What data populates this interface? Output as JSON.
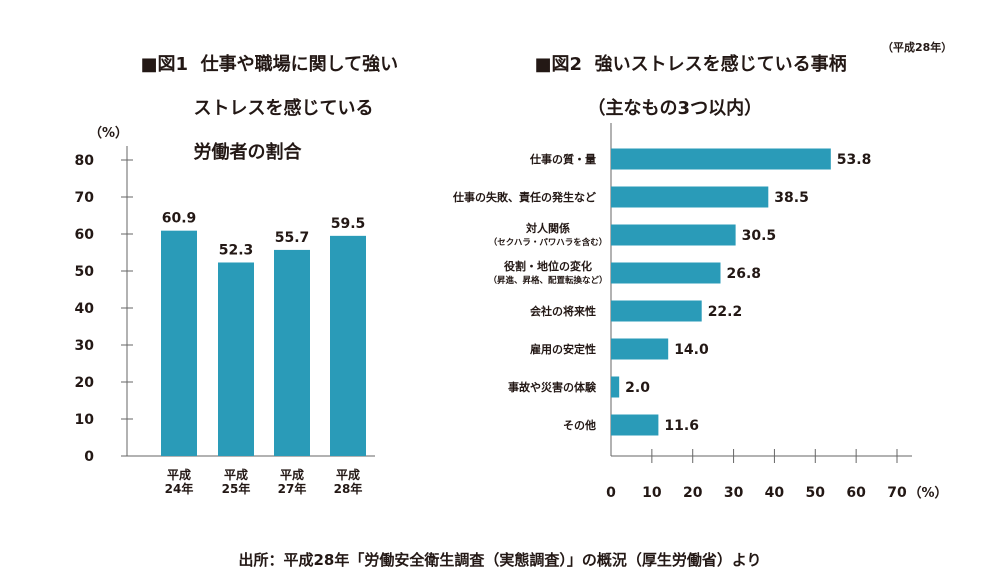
{
  "figure1": {
    "label": "■図1",
    "title_lines": [
      "仕事や職場に関して強い",
      "ストレスを感じている",
      "労働者の割合"
    ],
    "unit_label": "（%）",
    "chart_data": {
      "type": "bar",
      "categories": [
        [
          "平成",
          "24年"
        ],
        [
          "平成",
          "25年"
        ],
        [
          "平成",
          "27年"
        ],
        [
          "平成",
          "28年"
        ]
      ],
      "values": [
        60.9,
        52.3,
        55.7,
        59.5
      ],
      "value_labels": [
        "60.9",
        "52.3",
        "55.7",
        "59.5"
      ],
      "ylim": [
        0,
        80
      ],
      "yticks": [
        "0",
        "10",
        "20",
        "30",
        "40",
        "50",
        "60",
        "70",
        "80"
      ],
      "bar_color": "#2a9bb8"
    }
  },
  "figure2": {
    "label": "■図2",
    "title_lines": [
      "強いストレスを感じている事柄",
      "（主なもの3つ以内）"
    ],
    "subnote": "（平成28年）",
    "unit_label": "（%）",
    "chart_data": {
      "type": "bar",
      "orientation": "horizontal",
      "categories": [
        [
          "仕事の質・量"
        ],
        [
          "仕事の失敗、責任の発生など"
        ],
        [
          "対人関係",
          "（セクハラ・パワハラを含む）"
        ],
        [
          "役割・地位の変化",
          "（昇進、昇格、配置転換など）"
        ],
        [
          "会社の将来性"
        ],
        [
          "雇用の安定性"
        ],
        [
          "事故や災害の体験"
        ],
        [
          "その他"
        ]
      ],
      "values": [
        53.8,
        38.5,
        30.5,
        26.8,
        22.2,
        14.0,
        2.0,
        11.6
      ],
      "value_labels": [
        "53.8",
        "38.5",
        "30.5",
        "26.8",
        "22.2",
        "14.0",
        "2.0",
        "11.6"
      ],
      "xlim": [
        0,
        70
      ],
      "xticks": [
        "0",
        "10",
        "20",
        "30",
        "40",
        "50",
        "60",
        "70"
      ],
      "bar_color": "#2a9bb8"
    }
  },
  "source": "出所：平成28年「労働安全衛生調査（実態調査）」の概況（厚生労働省）より"
}
